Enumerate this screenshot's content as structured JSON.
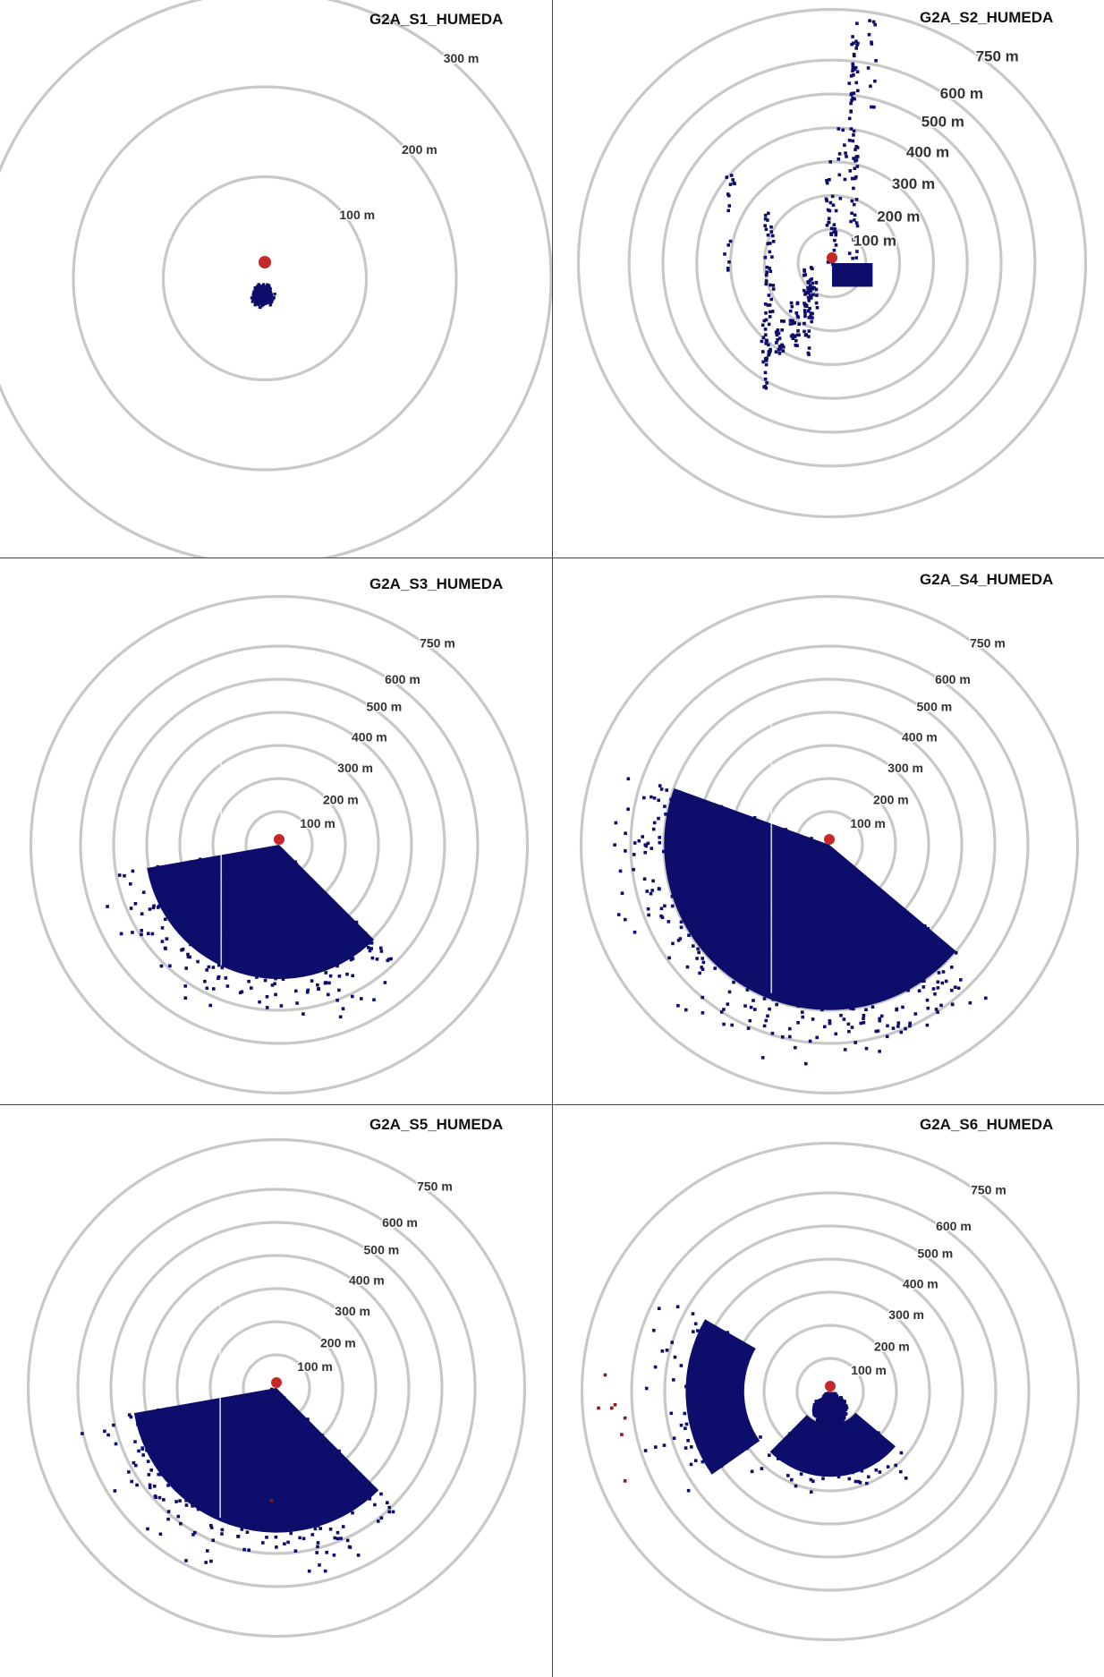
{
  "colors": {
    "points": "#0d0d6b",
    "origin": "#c62828",
    "outlier": "#8b1a1a",
    "rings": "#c8c8c8"
  },
  "chart_data": [
    {
      "type": "scatter",
      "title": "G2A_S1_HUMEDA",
      "ring_labels": [
        "100 m",
        "200 m",
        "300 m"
      ],
      "rings_m": [
        100,
        200,
        300
      ],
      "clusters": [
        {
          "shape": "blob",
          "center_m": [
            -2,
            -17
          ],
          "radius_m": 10,
          "count": 60
        }
      ],
      "outliers": []
    },
    {
      "type": "scatter",
      "title": "G2A_S2_HUMEDA",
      "ring_labels": [
        "100 m",
        "200 m",
        "300 m",
        "400 m",
        "500 m",
        "600 m",
        "750 m"
      ],
      "rings_m": [
        100,
        200,
        300,
        400,
        500,
        600,
        750
      ],
      "clusters": [
        {
          "shape": "square",
          "x_m": [
            0,
            120
          ],
          "y_m": [
            -70,
            0
          ]
        }
      ],
      "columns": [
        {
          "x_m": 64,
          "y_m": [
            -10,
            710
          ],
          "count": 70
        },
        {
          "x_m": -10,
          "y_m": [
            100,
            300
          ],
          "count": 12
        },
        {
          "x_m": 0,
          "y_m": [
            -10,
            180
          ],
          "count": 20
        },
        {
          "x_m": -70,
          "y_m": [
            -280,
            -10
          ],
          "count": 45
        },
        {
          "x_m": -55,
          "y_m": [
            -140,
            -40
          ],
          "count": 18
        },
        {
          "x_m": -185,
          "y_m": [
            -150,
            150
          ],
          "count": 30
        },
        {
          "x_m": -195,
          "y_m": [
            -370,
            -120
          ],
          "count": 36
        },
        {
          "x_m": -155,
          "y_m": [
            -270,
            -170
          ],
          "count": 20
        },
        {
          "x_m": -110,
          "y_m": [
            -250,
            -110
          ],
          "count": 25
        },
        {
          "x_m": -300,
          "y_m": [
            130,
            300
          ],
          "count": 10
        },
        {
          "x_m": -310,
          "y_m": [
            -30,
            80
          ],
          "count": 6
        },
        {
          "x_m": 30,
          "y_m": [
            140,
            410
          ],
          "count": 10
        },
        {
          "x_m": 120,
          "y_m": [
            460,
            720
          ],
          "count": 12
        }
      ],
      "outliers": []
    },
    {
      "type": "scatter",
      "title": "G2A_S3_HUMEDA",
      "ring_labels": [
        "100 m",
        "200 m",
        "300 m",
        "400 m",
        "500 m",
        "600 m",
        "750 m"
      ],
      "rings_m": [
        100,
        200,
        300,
        400,
        500,
        600,
        750
      ],
      "clusters": [
        {
          "shape": "fan",
          "theta_deg": [
            190,
            315
          ],
          "r_m": [
            0,
            520
          ],
          "count": 3600,
          "trim_deg": [],
          "gap_x_m": -175
        }
      ],
      "outliers": []
    },
    {
      "type": "scatter",
      "title": "G2A_S4_HUMEDA",
      "ring_labels": [
        "100 m",
        "200 m",
        "300 m",
        "400 m",
        "500 m",
        "600 m",
        "750 m"
      ],
      "rings_m": [
        100,
        200,
        300,
        400,
        500,
        600,
        750
      ],
      "clusters": [
        {
          "shape": "fan",
          "theta_deg": [
            160,
            320
          ],
          "r_m": [
            0,
            640
          ],
          "count": 4800,
          "trim_deg": [],
          "gap_x_m": -175
        }
      ],
      "outliers": []
    },
    {
      "type": "scatter",
      "title": "G2A_S5_HUMEDA",
      "ring_labels": [
        "100 m",
        "200 m",
        "300 m",
        "400 m",
        "500 m",
        "600 m",
        "750 m"
      ],
      "rings_m": [
        100,
        200,
        300,
        400,
        500,
        600,
        750
      ],
      "clusters": [
        {
          "shape": "fan",
          "theta_deg": [
            190,
            315
          ],
          "r_m": [
            0,
            560
          ],
          "count": 3800,
          "trim_deg": [],
          "gap_x_m": -170
        }
      ],
      "outliers": [
        [
          -15,
          -340
        ]
      ]
    },
    {
      "type": "scatter",
      "title": "G2A_S6_HUMEDA",
      "ring_labels": [
        "100 m",
        "200 m",
        "300 m",
        "400 m",
        "500 m",
        "600 m",
        "750 m"
      ],
      "rings_m": [
        100,
        200,
        300,
        400,
        500,
        600,
        750
      ],
      "clusters": [
        {
          "shape": "blob",
          "center_m": [
            0,
            -55
          ],
          "radius_m": 42,
          "count": 300
        },
        {
          "shape": "fan",
          "theta_deg": [
            150,
            215
          ],
          "r_m": [
            260,
            560
          ],
          "count": 600,
          "trim_deg": [],
          "gap_x_m": null
        },
        {
          "shape": "fan",
          "theta_deg": [
            225,
            320
          ],
          "r_m": [
            100,
            330
          ],
          "count": 500,
          "trim_deg": [],
          "gap_x_m": null
        }
      ],
      "outliers": [
        [
          -680,
          50
        ],
        [
          -700,
          -50
        ],
        [
          -650,
          -40
        ],
        [
          -660,
          -50
        ],
        [
          -620,
          -80
        ],
        [
          -630,
          -130
        ],
        [
          -620,
          -270
        ]
      ]
    }
  ]
}
